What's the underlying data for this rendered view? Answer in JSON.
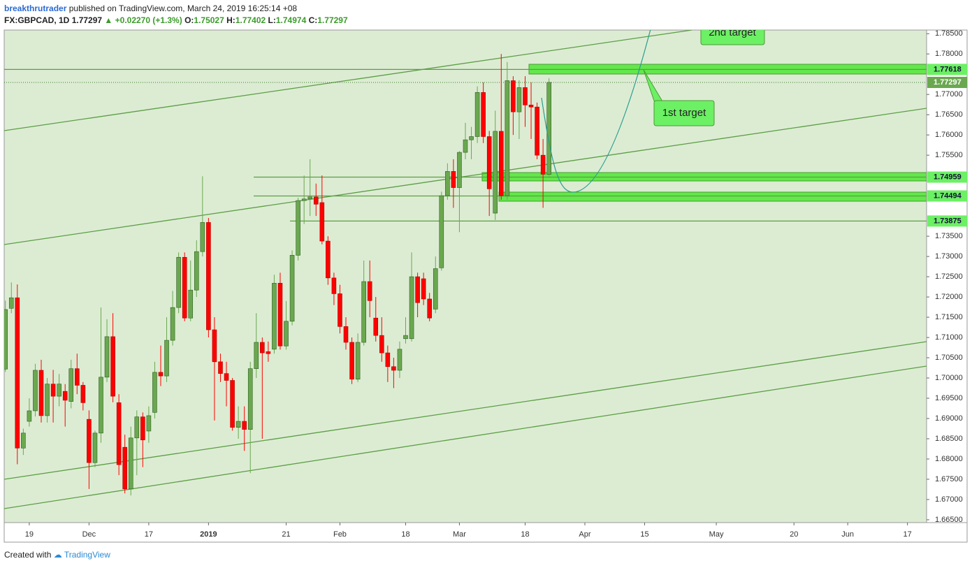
{
  "header": {
    "user": "breakthrutrader",
    "published": "published on TradingView.com, March 24, 2019 16:25:14 +08",
    "symbol": "FX:GBPCAD, 1D",
    "price": "1.77297",
    "change": "+0.02270 (+1.3%)",
    "ohlc": [
      {
        "name": "O:",
        "value": "1.75027"
      },
      {
        "name": "H:",
        "value": "1.77402"
      },
      {
        "name": "L:",
        "value": "1.74974"
      },
      {
        "name": "C:",
        "value": "1.77297"
      }
    ]
  },
  "footer": {
    "created": "Created with",
    "brand": "TradingView"
  },
  "chart_data": {
    "type": "candlestick",
    "up_color": "#6aa84f",
    "down_color": "#ff0000",
    "background": "#dcecd3",
    "open": [
      1.7022,
      1.7172,
      1.7198,
      1.6827,
      1.6893,
      1.6919,
      1.7019,
      1.6907,
      1.6985,
      1.6955,
      1.6967,
      1.6942,
      1.7023,
      1.6982,
      1.6898,
      1.6791,
      1.6864,
      1.7002,
      1.7102,
      1.6939,
      1.6829,
      1.6726,
      1.6852,
      1.6904,
      1.6869,
      1.6915,
      1.7014,
      1.7005,
      1.7093,
      1.7174,
      1.7298,
      1.7148,
      1.7217,
      1.7312,
      1.7384,
      1.7119,
      1.704,
      1.7011,
      1.6994,
      1.6878,
      1.6893,
      1.6873,
      1.7023,
      1.7088,
      1.7065,
      1.7071,
      1.7234,
      1.7079,
      1.714,
      1.7303,
      1.7438,
      1.7442,
      1.7447,
      1.7433,
      1.7338,
      1.7247,
      1.7208,
      1.7127,
      1.7088,
      1.6997,
      1.7088,
      1.7238,
      1.7148,
      1.7105,
      1.7062,
      1.7028,
      1.7019,
      1.7097,
      1.7097,
      1.725,
      1.7245,
      1.7195,
      1.717,
      1.7272,
      1.745,
      1.751,
      1.747,
      1.7557,
      1.7588,
      1.7596,
      1.7705,
      1.7596,
      1.7407,
      1.7609,
      1.745,
      1.7734,
      1.7657,
      1.7717,
      1.7674,
      1.7669,
      1.755,
      1.75027
    ],
    "high": [
      1.7191,
      1.7236,
      1.7231,
      1.6875,
      1.695,
      1.7035,
      1.7045,
      1.7,
      1.702,
      1.701,
      1.6985,
      1.7045,
      1.706,
      1.699,
      1.692,
      1.687,
      1.7174,
      1.7145,
      1.716,
      1.696,
      1.686,
      1.688,
      1.692,
      1.6915,
      1.693,
      1.704,
      1.708,
      1.715,
      1.7215,
      1.731,
      1.731,
      1.729,
      1.734,
      1.7498,
      1.7395,
      1.715,
      1.706,
      1.704,
      1.7,
      1.693,
      1.693,
      1.704,
      1.716,
      1.71,
      1.709,
      1.7255,
      1.726,
      1.719,
      1.7315,
      1.7445,
      1.75,
      1.754,
      1.748,
      1.75,
      1.735,
      1.726,
      1.723,
      1.715,
      1.71,
      1.711,
      1.729,
      1.729,
      1.72,
      1.715,
      1.708,
      1.705,
      1.709,
      1.715,
      1.731,
      1.726,
      1.726,
      1.721,
      1.73,
      1.746,
      1.753,
      1.754,
      1.756,
      1.763,
      1.762,
      1.772,
      1.773,
      1.761,
      1.766,
      1.78,
      1.778,
      1.7745,
      1.7735,
      1.7745,
      1.773,
      1.768,
      1.759,
      1.77402
    ],
    "low": [
      1.7015,
      1.716,
      1.6787,
      1.681,
      1.688,
      1.6905,
      1.689,
      1.689,
      1.689,
      1.693,
      1.688,
      1.6925,
      1.696,
      1.692,
      1.6726,
      1.678,
      1.684,
      1.699,
      1.694,
      1.676,
      1.6715,
      1.671,
      1.676,
      1.678,
      1.684,
      1.69,
      1.698,
      1.699,
      1.708,
      1.716,
      1.714,
      1.714,
      1.72,
      1.73,
      1.71,
      1.6895,
      1.699,
      1.693,
      1.687,
      1.685,
      1.682,
      1.6765,
      1.7,
      1.685,
      1.704,
      1.706,
      1.707,
      1.707,
      1.713,
      1.729,
      1.738,
      1.74,
      1.74,
      1.733,
      1.723,
      1.718,
      1.711,
      1.707,
      1.6985,
      1.699,
      1.708,
      1.715,
      1.709,
      1.704,
      1.699,
      1.6975,
      1.7,
      1.7085,
      1.709,
      1.715,
      1.718,
      1.714,
      1.716,
      1.7265,
      1.744,
      1.742,
      1.736,
      1.754,
      1.754,
      1.758,
      1.758,
      1.74,
      1.739,
      1.744,
      1.744,
      1.76,
      1.759,
      1.762,
      1.759,
      1.754,
      1.742,
      1.74974
    ],
    "close": [
      1.7169,
      1.7198,
      1.6827,
      1.6864,
      1.6919,
      1.7019,
      1.6907,
      1.6985,
      1.6955,
      1.6985,
      1.6945,
      1.7023,
      1.6982,
      1.6939,
      1.6791,
      1.6864,
      1.7002,
      1.7102,
      1.6955,
      1.6786,
      1.6726,
      1.6852,
      1.6904,
      1.6847,
      1.6907,
      1.7014,
      1.7005,
      1.7093,
      1.7174,
      1.7298,
      1.7148,
      1.7217,
      1.7312,
      1.7384,
      1.7119,
      1.704,
      1.7011,
      1.6994,
      1.6878,
      1.6893,
      1.6873,
      1.7023,
      1.7088,
      1.7062,
      1.706,
      1.7234,
      1.7079,
      1.714,
      1.7303,
      1.7438,
      1.7442,
      1.7447,
      1.7429,
      1.7338,
      1.7247,
      1.7208,
      1.7127,
      1.7088,
      1.6997,
      1.7088,
      1.7238,
      1.7191,
      1.7105,
      1.7062,
      1.7028,
      1.7019,
      1.7071,
      1.7105,
      1.725,
      1.7186,
      1.7195,
      1.7148,
      1.727,
      1.745,
      1.751,
      1.747,
      1.7557,
      1.7588,
      1.7596,
      1.7705,
      1.7596,
      1.7467,
      1.7609,
      1.745,
      1.7734,
      1.7657,
      1.7717,
      1.7674,
      1.7669,
      1.755,
      1.7503,
      1.77297
    ],
    "xlim": [
      -0.2,
      154.2
    ],
    "xticks": [
      {
        "value": 4,
        "label": "19"
      },
      {
        "value": 14,
        "label": "Dec"
      },
      {
        "value": 24,
        "label": "17"
      },
      {
        "value": 34,
        "label": "2019"
      },
      {
        "value": 47,
        "label": "21"
      },
      {
        "value": 56,
        "label": "Feb"
      },
      {
        "value": 67,
        "label": "18"
      },
      {
        "value": 76,
        "label": "Mar"
      },
      {
        "value": 87,
        "label": "18"
      },
      {
        "value": 97,
        "label": "Apr"
      },
      {
        "value": 107,
        "label": "15"
      },
      {
        "value": 119,
        "label": "May"
      },
      {
        "value": 132,
        "label": "20"
      },
      {
        "value": 141,
        "label": "Jun"
      },
      {
        "value": 151,
        "label": "17"
      }
    ],
    "ylim": [
      1.6643,
      1.7859
    ],
    "yticks": [
      {
        "value": 1.785,
        "label": "1.78500"
      },
      {
        "value": 1.78,
        "label": "1.78000"
      },
      {
        "value": 1.77,
        "label": "1.77000"
      },
      {
        "value": 1.765,
        "label": "1.76500"
      },
      {
        "value": 1.76,
        "label": "1.76000"
      },
      {
        "value": 1.755,
        "label": "1.75500"
      },
      {
        "value": 1.735,
        "label": "1.73500"
      },
      {
        "value": 1.73,
        "label": "1.73000"
      },
      {
        "value": 1.725,
        "label": "1.72500"
      },
      {
        "value": 1.72,
        "label": "1.72000"
      },
      {
        "value": 1.715,
        "label": "1.71500"
      },
      {
        "value": 1.71,
        "label": "1.71000"
      },
      {
        "value": 1.705,
        "label": "1.70500"
      },
      {
        "value": 1.7,
        "label": "1.70000"
      },
      {
        "value": 1.695,
        "label": "1.69500"
      },
      {
        "value": 1.69,
        "label": "1.69000"
      },
      {
        "value": 1.685,
        "label": "1.68500"
      },
      {
        "value": 1.68,
        "label": "1.68000"
      },
      {
        "value": 1.675,
        "label": "1.67500"
      },
      {
        "value": 1.67,
        "label": "1.67000"
      },
      {
        "value": 1.665,
        "label": "1.66500"
      }
    ],
    "levels": [
      {
        "value": 1.77618,
        "label": "1.77618"
      },
      {
        "value": 1.74959,
        "label": "1.74959"
      },
      {
        "value": 1.74494,
        "label": "1.74494"
      },
      {
        "value": 1.73875,
        "label": "1.73875"
      }
    ],
    "last_price": {
      "value": 1.77297,
      "label": "1.77297"
    },
    "annotations": [
      "2nd target",
      "1st target"
    ]
  }
}
